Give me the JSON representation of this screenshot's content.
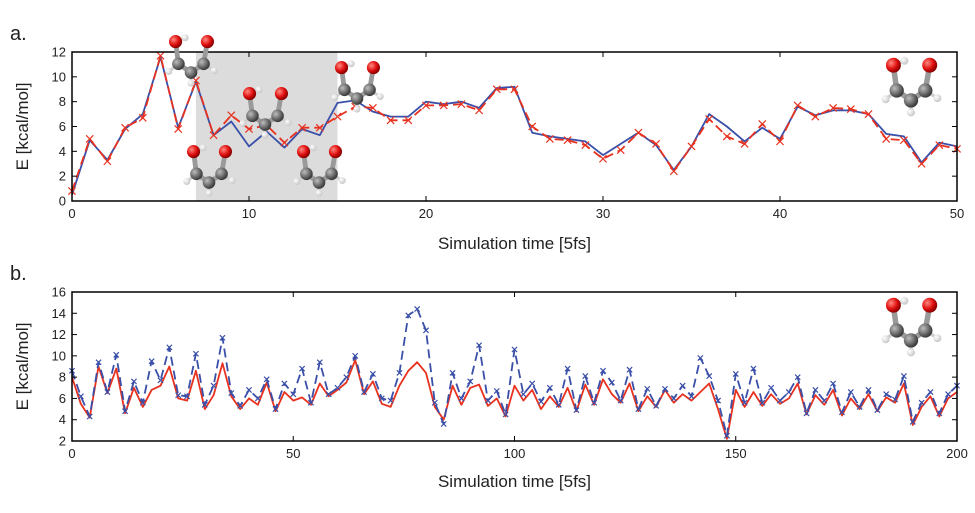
{
  "chart_data": [
    {
      "panel_label": "a.",
      "type": "line",
      "xlabel": "Simulation time [5fs]",
      "ylabel": "E [kcal/mol]",
      "xlim": [
        0,
        50
      ],
      "ylim": [
        0,
        12
      ],
      "xticks": [
        0,
        10,
        20,
        30,
        40,
        50
      ],
      "yticks": [
        0,
        2,
        4,
        6,
        8,
        10,
        12
      ],
      "highlight_region": [
        7,
        15
      ],
      "grid": false,
      "x": [
        0,
        1,
        2,
        3,
        4,
        5,
        6,
        7,
        8,
        9,
        10,
        11,
        12,
        13,
        14,
        15,
        16,
        17,
        18,
        19,
        20,
        21,
        22,
        23,
        24,
        25,
        26,
        27,
        28,
        29,
        30,
        31,
        32,
        33,
        34,
        35,
        36,
        37,
        38,
        39,
        40,
        41,
        42,
        43,
        44,
        45,
        46,
        47,
        48,
        49,
        50
      ],
      "series": [
        {
          "color": "#3a4fa8",
          "style": "solid",
          "marker": "none",
          "values": [
            0.5,
            4.9,
            3.3,
            5.8,
            7.0,
            11.6,
            5.9,
            9.6,
            5.3,
            6.4,
            4.4,
            5.6,
            4.3,
            5.8,
            5.3,
            7.9,
            8.1,
            7.2,
            6.8,
            6.8,
            8.0,
            7.8,
            8.0,
            7.5,
            9.1,
            9.2,
            5.5,
            5.2,
            5.0,
            4.8,
            3.7,
            4.6,
            5.5,
            4.5,
            2.5,
            4.4,
            7.0,
            6.0,
            4.8,
            5.9,
            5.0,
            7.6,
            6.9,
            7.3,
            7.3,
            7.0,
            5.4,
            5.2,
            3.1,
            4.7,
            4.4
          ]
        },
        {
          "color": "#e8321f",
          "style": "dashed",
          "marker": "x",
          "values": [
            0.8,
            5.0,
            3.2,
            5.9,
            6.7,
            11.7,
            5.8,
            9.7,
            5.3,
            6.9,
            5.8,
            6.1,
            4.7,
            5.9,
            5.9,
            6.8,
            7.6,
            7.5,
            6.5,
            6.5,
            7.7,
            7.7,
            7.8,
            7.3,
            9.0,
            9.0,
            6.0,
            5.0,
            4.9,
            4.5,
            3.4,
            4.1,
            5.5,
            4.6,
            2.4,
            4.4,
            6.6,
            5.2,
            4.6,
            6.2,
            4.8,
            7.7,
            6.8,
            7.5,
            7.4,
            7.0,
            5.0,
            4.9,
            3.0,
            4.5,
            4.2
          ]
        }
      ]
    },
    {
      "panel_label": "b.",
      "type": "line",
      "xlabel": "Simulation time [5fs]",
      "ylabel": "E [kcal/mol]",
      "xlim": [
        0,
        200
      ],
      "ylim": [
        2,
        16
      ],
      "xticks": [
        0,
        50,
        100,
        150,
        200
      ],
      "yticks": [
        2,
        4,
        6,
        8,
        10,
        12,
        14,
        16
      ],
      "grid": false,
      "x": [
        0,
        2,
        4,
        6,
        8,
        10,
        12,
        14,
        16,
        18,
        20,
        22,
        24,
        26,
        28,
        30,
        32,
        34,
        36,
        38,
        40,
        42,
        44,
        46,
        48,
        50,
        52,
        54,
        56,
        58,
        60,
        62,
        64,
        66,
        68,
        70,
        72,
        74,
        76,
        78,
        80,
        82,
        84,
        86,
        88,
        90,
        92,
        94,
        96,
        98,
        100,
        102,
        104,
        106,
        108,
        110,
        112,
        114,
        116,
        118,
        120,
        122,
        124,
        126,
        128,
        130,
        132,
        134,
        136,
        138,
        140,
        142,
        144,
        146,
        148,
        150,
        152,
        154,
        156,
        158,
        160,
        162,
        164,
        166,
        168,
        170,
        172,
        174,
        176,
        178,
        180,
        182,
        184,
        186,
        188,
        190,
        192,
        194,
        196,
        198,
        200
      ],
      "series": [
        {
          "color": "#e8321f",
          "style": "solid",
          "marker": "none",
          "values": [
            8.0,
            5.5,
            4.2,
            9.0,
            6.5,
            8.8,
            4.6,
            7.0,
            5.2,
            6.8,
            7.2,
            9.0,
            6.0,
            5.8,
            8.6,
            5.0,
            6.3,
            9.3,
            6.2,
            5.0,
            6.0,
            5.4,
            7.5,
            4.8,
            6.6,
            5.8,
            6.1,
            5.4,
            7.4,
            6.2,
            6.8,
            7.5,
            9.6,
            6.4,
            7.6,
            5.5,
            5.2,
            7.2,
            8.6,
            9.4,
            8.4,
            5.2,
            4.0,
            7.2,
            5.4,
            7.0,
            7.3,
            5.3,
            6.0,
            4.3,
            7.2,
            5.8,
            6.8,
            5.0,
            6.2,
            5.2,
            7.0,
            4.8,
            7.3,
            5.4,
            7.8,
            6.4,
            5.6,
            7.4,
            4.8,
            6.2,
            5.2,
            6.8,
            5.6,
            6.4,
            5.8,
            6.6,
            7.4,
            5.0,
            2.2,
            6.8,
            5.2,
            6.6,
            5.3,
            6.4,
            5.5,
            6.0,
            7.4,
            4.5,
            6.3,
            5.4,
            6.8,
            4.4,
            6.0,
            5.0,
            6.4,
            4.8,
            6.1,
            5.6,
            7.4,
            3.5,
            5.2,
            6.2,
            4.3,
            6.0,
            6.6
          ]
        },
        {
          "color": "#3a4fa8",
          "style": "dashed",
          "marker": "x",
          "values": [
            8.6,
            6.2,
            4.3,
            9.4,
            6.6,
            10.1,
            4.8,
            7.6,
            5.6,
            9.5,
            7.7,
            10.8,
            6.3,
            6.2,
            10.2,
            5.4,
            7.2,
            11.7,
            6.5,
            5.3,
            6.8,
            6.0,
            7.8,
            5.0,
            7.4,
            6.4,
            8.8,
            5.6,
            9.4,
            6.4,
            7.0,
            8.0,
            10.0,
            6.6,
            8.3,
            6.0,
            5.8,
            8.4,
            13.8,
            14.4,
            12.4,
            5.6,
            3.6,
            8.4,
            6.0,
            7.6,
            11.0,
            5.8,
            6.7,
            4.5,
            10.6,
            6.4,
            7.4,
            5.7,
            7.0,
            5.4,
            8.8,
            4.9,
            8.1,
            5.6,
            8.6,
            7.5,
            5.8,
            8.7,
            5.0,
            6.9,
            5.3,
            6.9,
            6.0,
            7.2,
            6.2,
            9.8,
            8.1,
            5.8,
            2.5,
            8.3,
            5.6,
            8.8,
            5.6,
            7.0,
            5.8,
            6.6,
            8.0,
            4.6,
            6.8,
            5.8,
            7.4,
            4.7,
            6.6,
            5.2,
            6.8,
            4.9,
            6.4,
            5.9,
            8.1,
            3.8,
            5.6,
            6.6,
            4.6,
            6.4,
            7.2
          ]
        }
      ]
    }
  ]
}
